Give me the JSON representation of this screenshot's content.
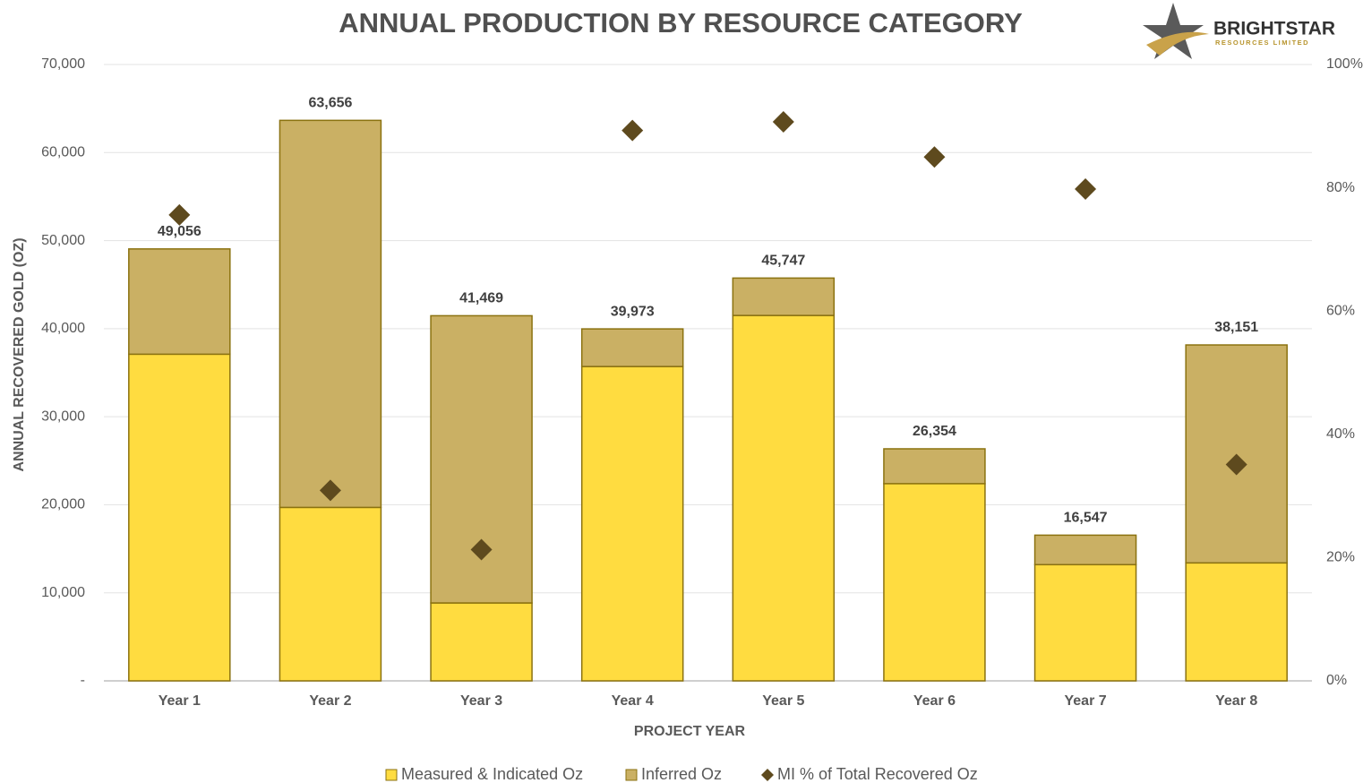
{
  "chart_data": {
    "type": "bar",
    "stacked": true,
    "title": "ANNUAL PRODUCTION BY RESOURCE CATEGORY",
    "x_label": "PROJECT YEAR",
    "y_label": "ANNUAL RECOVERED GOLD (OZ)",
    "categories": [
      "Year 1",
      "Year 2",
      "Year 3",
      "Year 4",
      "Year 5",
      "Year 6",
      "Year 7",
      "Year 8"
    ],
    "series": [
      {
        "name": "Measured & Indicated Oz",
        "color": "#ffdc40",
        "values": [
          37100,
          19700,
          8850,
          35700,
          41500,
          22400,
          13200,
          13400
        ]
      },
      {
        "name": "Inferred Oz",
        "color": "#cab064",
        "values": [
          11956,
          43956,
          32619,
          4273,
          4247,
          3954,
          3347,
          24751
        ]
      },
      {
        "name": "MI % of Total Recovered Oz",
        "color": "#5e4a1e",
        "type": "scatter",
        "marker": "diamond",
        "axis": "y2",
        "values": [
          75.6,
          30.9,
          21.3,
          89.3,
          90.7,
          85.0,
          79.8,
          35.1
        ]
      }
    ],
    "total_labels": [
      "49,056",
      "63,656",
      "41,469",
      "39,973",
      "45,747",
      "26,354",
      "16,547",
      "38,151"
    ],
    "ylim": [
      0,
      70000
    ],
    "yticks": [
      {
        "value": 0,
        "label": "-"
      },
      {
        "value": 10000,
        "label": "10,000"
      },
      {
        "value": 20000,
        "label": "20,000"
      },
      {
        "value": 30000,
        "label": "30,000"
      },
      {
        "value": 40000,
        "label": "40,000"
      },
      {
        "value": 50000,
        "label": "50,000"
      },
      {
        "value": 60000,
        "label": "60,000"
      },
      {
        "value": 70000,
        "label": "70,000"
      }
    ],
    "y2lim": [
      0,
      100
    ],
    "y2ticks": [
      {
        "value": 0,
        "label": "0%"
      },
      {
        "value": 20,
        "label": "20%"
      },
      {
        "value": 40,
        "label": "40%"
      },
      {
        "value": 60,
        "label": "60%"
      },
      {
        "value": 80,
        "label": "80%"
      },
      {
        "value": 100,
        "label": "100%"
      }
    ],
    "grid": true,
    "legend": "bottom"
  },
  "logo": {
    "name": "BRIGHTSTAR",
    "tagline": "RESOURCES LIMITED"
  }
}
